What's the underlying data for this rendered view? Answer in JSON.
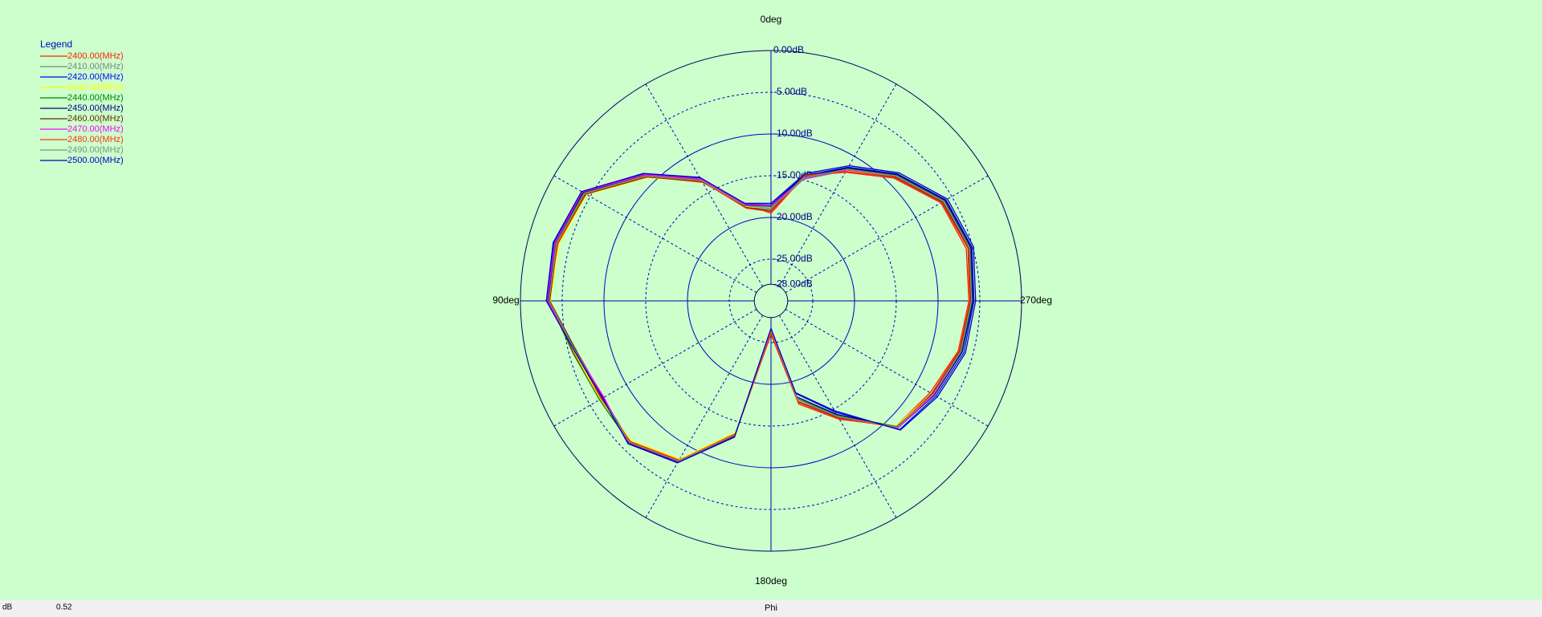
{
  "chart_data": {
    "type": "polar",
    "legend_title": "Legend",
    "legend": "upper left",
    "x_label": "Phi",
    "y_label": "dB",
    "readout": 0.52,
    "x": [
      0,
      15,
      30,
      45,
      60,
      75,
      90,
      105,
      120,
      135,
      150,
      165,
      180,
      195,
      210,
      225,
      240,
      255,
      270,
      285,
      300,
      315,
      330,
      345
    ],
    "xlim": [
      0,
      360
    ],
    "xticks": [
      {
        "value": 0,
        "label": "0deg"
      },
      {
        "value": 90,
        "label": "90deg"
      },
      {
        "value": 180,
        "label": "180deg"
      },
      {
        "value": 270,
        "label": "270deg"
      }
    ],
    "ylim": [
      -30,
      0
    ],
    "yticks": [
      {
        "value": 0,
        "label": "0.00dB"
      },
      {
        "value": -5,
        "label": "-5.00dB"
      },
      {
        "value": -10,
        "label": "-10.00dB"
      },
      {
        "value": -15,
        "label": "-15.00dB"
      },
      {
        "value": -20,
        "label": "-20.00dB"
      },
      {
        "value": -25,
        "label": "-25.00dB"
      },
      {
        "value": -28,
        "label": "-28.00dB"
      }
    ],
    "series": [
      {
        "name": "2400.00(MHz)",
        "color": "#ff2000",
        "values": [
          -19.5,
          -18.0,
          -13.6,
          -9.0,
          -4.5,
          -3.6,
          -3.3,
          -5.6,
          -6.5,
          -6.2,
          -8.0,
          -13.6,
          -26.0,
          -17.2,
          -13.6,
          -8.8,
          -8.0,
          -6.8,
          -6.3,
          -5.8,
          -6.5,
          -9.2,
          -12.2,
          -14.5
        ]
      },
      {
        "name": "2410.00(MHz)",
        "color": "#808080",
        "values": [
          -19.0,
          -18.4,
          -13.4,
          -8.9,
          -4.3,
          -3.5,
          -3.5,
          -6.0,
          -6.8,
          -6.1,
          -7.9,
          -13.5,
          -26.4,
          -17.6,
          -13.9,
          -8.7,
          -7.7,
          -6.6,
          -6.1,
          -5.5,
          -6.2,
          -8.9,
          -12.0,
          -14.9
        ]
      },
      {
        "name": "2420.00(MHz)",
        "color": "#0000ff",
        "values": [
          -18.5,
          -18.0,
          -13.0,
          -8.5,
          -3.9,
          -3.1,
          -3.2,
          -5.8,
          -6.6,
          -5.9,
          -7.7,
          -13.2,
          -26.6,
          -18.5,
          -14.6,
          -8.2,
          -7.2,
          -6.1,
          -5.7,
          -5.1,
          -5.8,
          -8.5,
          -11.5,
          -14.4
        ]
      },
      {
        "name": "2430.00(MHz)",
        "color": "#ffff00",
        "values": [
          -18.9,
          -18.3,
          -13.5,
          -9.1,
          -4.5,
          -3.7,
          -3.6,
          -5.7,
          -6.4,
          -6.3,
          -8.1,
          -13.7,
          -26.3,
          -17.7,
          -14.1,
          -8.8,
          -7.8,
          -6.7,
          -6.2,
          -5.6,
          -6.3,
          -9.0,
          -12.0,
          -14.6
        ]
      },
      {
        "name": "2440.00(MHz)",
        "color": "#008000",
        "values": [
          -18.7,
          -18.1,
          -13.2,
          -8.7,
          -4.1,
          -3.3,
          -3.4,
          -5.5,
          -6.3,
          -6.0,
          -7.9,
          -13.4,
          -26.5,
          -17.9,
          -14.2,
          -8.7,
          -7.6,
          -6.4,
          -5.9,
          -5.3,
          -6.0,
          -8.7,
          -11.7,
          -14.7
        ]
      },
      {
        "name": "2450.00(MHz)",
        "color": "#000080",
        "values": [
          -18.6,
          -18.1,
          -13.1,
          -8.6,
          -4.0,
          -3.2,
          -3.3,
          -6.0,
          -6.8,
          -5.9,
          -7.6,
          -13.2,
          -26.6,
          -18.1,
          -14.3,
          -8.5,
          -7.4,
          -6.3,
          -5.8,
          -5.2,
          -5.9,
          -8.6,
          -11.6,
          -14.6
        ]
      },
      {
        "name": "2460.00(MHz)",
        "color": "#603000",
        "values": [
          -19.2,
          -18.4,
          -13.5,
          -9.0,
          -4.4,
          -3.5,
          -3.5,
          -6.0,
          -6.7,
          -6.1,
          -7.8,
          -13.3,
          -26.4,
          -17.5,
          -13.8,
          -8.6,
          -7.7,
          -6.6,
          -6.1,
          -5.5,
          -6.3,
          -9.0,
          -12.1,
          -14.4
        ]
      },
      {
        "name": "2470.00(MHz)",
        "color": "#ff00ff",
        "values": [
          -18.6,
          -18.0,
          -13.1,
          -8.6,
          -3.9,
          -3.2,
          -3.2,
          -5.9,
          -6.9,
          -5.8,
          -7.6,
          -13.1,
          -26.6,
          -17.8,
          -14.0,
          -8.5,
          -7.5,
          -6.5,
          -6.0,
          -5.4,
          -6.1,
          -8.8,
          -11.9,
          -14.8
        ]
      },
      {
        "name": "2480.00(MHz)",
        "color": "#ff3010",
        "values": [
          -19.3,
          -18.5,
          -13.4,
          -8.9,
          -4.3,
          -3.5,
          -3.4,
          -5.8,
          -6.6,
          -6.1,
          -7.9,
          -13.5,
          -26.2,
          -17.4,
          -13.7,
          -8.6,
          -7.8,
          -6.7,
          -6.2,
          -5.6,
          -6.4,
          -9.1,
          -12.1,
          -14.5
        ]
      },
      {
        "name": "2490.00(MHz)",
        "color": "#809080",
        "values": [
          -18.9,
          -18.2,
          -13.3,
          -8.8,
          -4.2,
          -3.4,
          -3.4,
          -5.9,
          -6.7,
          -6.0,
          -7.8,
          -13.4,
          -26.5,
          -17.8,
          -14.0,
          -8.6,
          -7.6,
          -6.5,
          -6.0,
          -5.4,
          -6.1,
          -8.8,
          -11.8,
          -14.7
        ]
      },
      {
        "name": "2500.00(MHz)",
        "color": "#0000c0",
        "values": [
          -18.3,
          -17.9,
          -12.9,
          -8.4,
          -3.8,
          -3.0,
          -3.1,
          -5.8,
          -6.7,
          -5.8,
          -7.6,
          -13.1,
          -26.7,
          -18.6,
          -14.8,
          -8.1,
          -7.0,
          -5.9,
          -5.5,
          -4.9,
          -5.6,
          -8.3,
          -11.3,
          -14.2
        ]
      }
    ]
  }
}
